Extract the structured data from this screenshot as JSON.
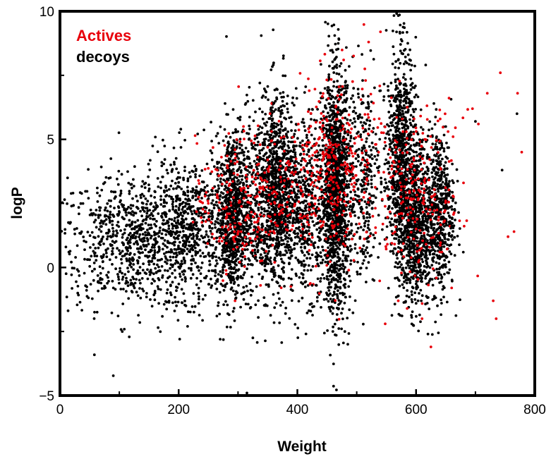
{
  "chart_data": {
    "type": "scatter",
    "title": "",
    "xlabel": "Weight",
    "ylabel": "logP",
    "xlim": [
      0,
      800
    ],
    "ylim": [
      -5,
      10
    ],
    "x_ticks": [
      0,
      200,
      400,
      600,
      800
    ],
    "x_tick_labels": [
      "0",
      "200",
      "400",
      "600",
      "800"
    ],
    "y_ticks": [
      -5,
      0,
      5,
      10
    ],
    "y_tick_labels": [
      "−5",
      "0",
      "5",
      "10"
    ],
    "grid": false,
    "legend": "top-left",
    "series": [
      {
        "name": "Actives",
        "color": "#e8000b",
        "estimated_point_count": 800,
        "distribution": "concentrated between weight 230-500 and 520-680 at logP -2.5 to 9; sparse outliers at weight 680-780",
        "points": [
          [
            250,
            2.5
          ],
          [
            265,
            3.8
          ],
          [
            280,
            1.6
          ],
          [
            295,
            4.6
          ],
          [
            310,
            2.7
          ],
          [
            330,
            3.5
          ],
          [
            350,
            4.2
          ],
          [
            370,
            2.1
          ],
          [
            390,
            3.7
          ],
          [
            410,
            4.6
          ],
          [
            425,
            2.8
          ],
          [
            440,
            5.4
          ],
          [
            455,
            3.2
          ],
          [
            465,
            6.3
          ],
          [
            470,
            1.1
          ],
          [
            480,
            4.1
          ],
          [
            490,
            2.0
          ],
          [
            505,
            2.6
          ],
          [
            520,
            8.8
          ],
          [
            540,
            9.2
          ],
          [
            555,
            4.6
          ],
          [
            560,
            3.1
          ],
          [
            570,
            -1.3
          ],
          [
            575,
            2.5
          ],
          [
            585,
            -1.6
          ],
          [
            590,
            4.0
          ],
          [
            600,
            1.5
          ],
          [
            610,
            -2.0
          ],
          [
            615,
            3.3
          ],
          [
            625,
            -3.1
          ],
          [
            640,
            0.6
          ],
          [
            650,
            2.6
          ],
          [
            660,
            -0.8
          ],
          [
            680,
            3.3
          ],
          [
            695,
            6.2
          ],
          [
            705,
            5.6
          ],
          [
            720,
            6.8
          ],
          [
            730,
            -1.3
          ],
          [
            735,
            -2.0
          ],
          [
            742,
            7.6
          ],
          [
            755,
            1.2
          ],
          [
            765,
            1.4
          ],
          [
            771,
            6.8
          ],
          [
            778,
            4.5
          ],
          [
            548,
            -2.2
          ],
          [
            338,
            -0.7
          ],
          [
            295,
            -1.3
          ],
          [
            420,
            6.9
          ],
          [
            478,
            8.1
          ],
          [
            515,
            7.3
          ]
        ]
      },
      {
        "name": "decoys",
        "color": "#000000",
        "estimated_point_count": 10000,
        "distribution": "broad cloud from weight 15-780, logP -5 to 9; dense vertical bands near weight 290, 365, 460-480, 570-600, 640",
        "points": [
          [
            15,
            0.6
          ],
          [
            30,
            -1.0
          ],
          [
            50,
            0.3
          ],
          [
            70,
            1.6
          ],
          [
            90,
            -0.8
          ],
          [
            105,
            -2.5
          ],
          [
            120,
            1.2
          ],
          [
            140,
            2.5
          ],
          [
            160,
            -1.0
          ],
          [
            180,
            3.8
          ],
          [
            200,
            2.0
          ],
          [
            215,
            -2.3
          ],
          [
            230,
            3.0
          ],
          [
            250,
            1.2
          ],
          [
            270,
            -2.8
          ],
          [
            285,
            2.5
          ],
          [
            295,
            1.8
          ],
          [
            310,
            4.5
          ],
          [
            315,
            -4.9
          ],
          [
            330,
            0.4
          ],
          [
            345,
            5.2
          ],
          [
            360,
            6.4
          ],
          [
            370,
            3.4
          ],
          [
            380,
            -1.8
          ],
          [
            395,
            4.6
          ],
          [
            410,
            1.7
          ],
          [
            425,
            -0.7
          ],
          [
            440,
            5.8
          ],
          [
            455,
            3.3
          ],
          [
            460,
            8.4
          ],
          [
            465,
            2.6
          ],
          [
            470,
            8.9
          ],
          [
            475,
            1.2
          ],
          [
            480,
            -2.5
          ],
          [
            485,
            -3.0
          ],
          [
            495,
            6.1
          ],
          [
            510,
            7.3
          ],
          [
            525,
            4.4
          ],
          [
            540,
            6.9
          ],
          [
            555,
            3.7
          ],
          [
            565,
            7.8
          ],
          [
            575,
            8.9
          ],
          [
            580,
            2.9
          ],
          [
            590,
            6.3
          ],
          [
            600,
            -1.4
          ],
          [
            610,
            4.9
          ],
          [
            620,
            -2.6
          ],
          [
            630,
            6.4
          ],
          [
            640,
            2.1
          ],
          [
            650,
            5.5
          ],
          [
            660,
            1.6
          ],
          [
            700,
            5.7
          ],
          [
            745,
            3.8
          ],
          [
            770,
            6.0
          ]
        ]
      }
    ]
  }
}
